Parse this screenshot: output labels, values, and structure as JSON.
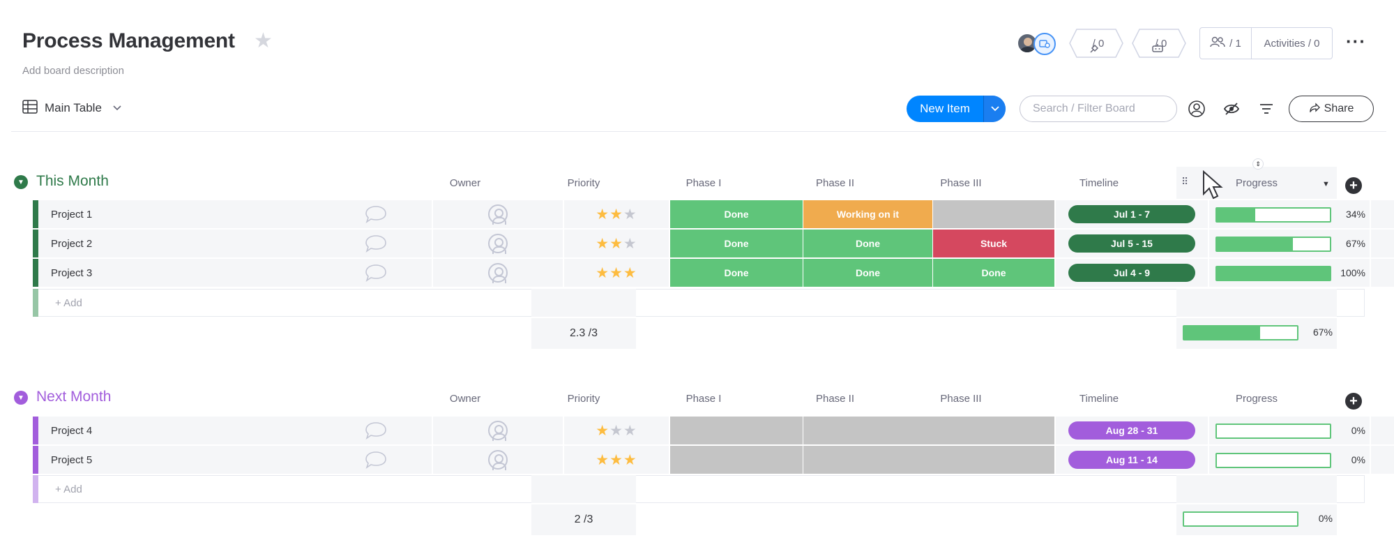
{
  "header": {
    "title": "Process Management",
    "description": "Add board description",
    "integrations_count": "/ 0",
    "automations_count": "/ 0",
    "people_count": "/ 1",
    "activities_label": "Activities / 0"
  },
  "toolbar": {
    "view_label": "Main Table",
    "new_item_label": "New Item",
    "search_placeholder": "Search / Filter Board",
    "share_label": "Share"
  },
  "columns": {
    "owner": "Owner",
    "priority": "Priority",
    "phase1": "Phase I",
    "phase2": "Phase II",
    "phase3": "Phase III",
    "timeline": "Timeline",
    "progress": "Progress"
  },
  "colors": {
    "done": "#5fc57a",
    "working": "#f0ab4e",
    "stuck": "#d5485f",
    "empty": "#c4c4c4",
    "group1": "#2f7a4a",
    "group2": "#a25ddc",
    "accent": "#0085ff"
  },
  "groups": [
    {
      "title": "This Month",
      "add_label": "+ Add",
      "summary_priority": "2.3 /3",
      "summary_progress": "67%",
      "summary_progress_value": 0.67,
      "rows": [
        {
          "name": "Project 1",
          "stars": 2,
          "phase1": "Done",
          "phase2": "Working on it",
          "phase3": "",
          "timeline": "Jul 1 - 7",
          "progress": "34%",
          "progress_value": 0.34
        },
        {
          "name": "Project 2",
          "stars": 2,
          "phase1": "Done",
          "phase2": "Done",
          "phase3": "Stuck",
          "timeline": "Jul 5 - 15",
          "progress": "67%",
          "progress_value": 0.67
        },
        {
          "name": "Project 3",
          "stars": 3,
          "phase1": "Done",
          "phase2": "Done",
          "phase3": "Done",
          "timeline": "Jul 4 - 9",
          "progress": "100%",
          "progress_value": 1.0
        }
      ]
    },
    {
      "title": "Next Month",
      "add_label": "+ Add",
      "summary_priority": "2 /3",
      "summary_progress": "0%",
      "summary_progress_value": 0,
      "rows": [
        {
          "name": "Project 4",
          "stars": 1,
          "phase1": "",
          "phase2": "",
          "phase3": "",
          "timeline": "Aug 28 - 31",
          "progress": "0%",
          "progress_value": 0
        },
        {
          "name": "Project 5",
          "stars": 3,
          "phase1": "",
          "phase2": "",
          "phase3": "",
          "timeline": "Aug 11 - 14",
          "progress": "0%",
          "progress_value": 0
        }
      ]
    }
  ]
}
